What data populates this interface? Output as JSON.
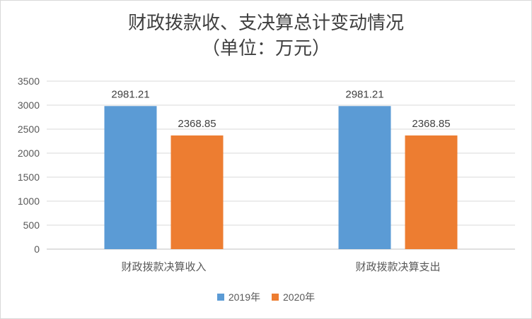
{
  "chart_data": {
    "type": "bar",
    "title": "财政拨款收、支决算总计变动情况",
    "subtitle": "（单位：万元）",
    "categories": [
      "财政拨款决算收入",
      "财政拨款决算支出"
    ],
    "series": [
      {
        "name": "2019年",
        "color": "#5b9bd5",
        "values": [
          2981.21,
          2981.21
        ],
        "labels": [
          "2981.21",
          "2981.21"
        ]
      },
      {
        "name": "2020年",
        "color": "#ed7d31",
        "values": [
          2368.85,
          2368.85
        ],
        "labels": [
          "2368.85",
          "2368.85"
        ]
      }
    ],
    "yticks": [
      "0",
      "500",
      "1000",
      "1500",
      "2000",
      "2500",
      "3000",
      "3500"
    ],
    "ylim": [
      0,
      3500
    ],
    "grid": true,
    "legend": "bottom"
  }
}
